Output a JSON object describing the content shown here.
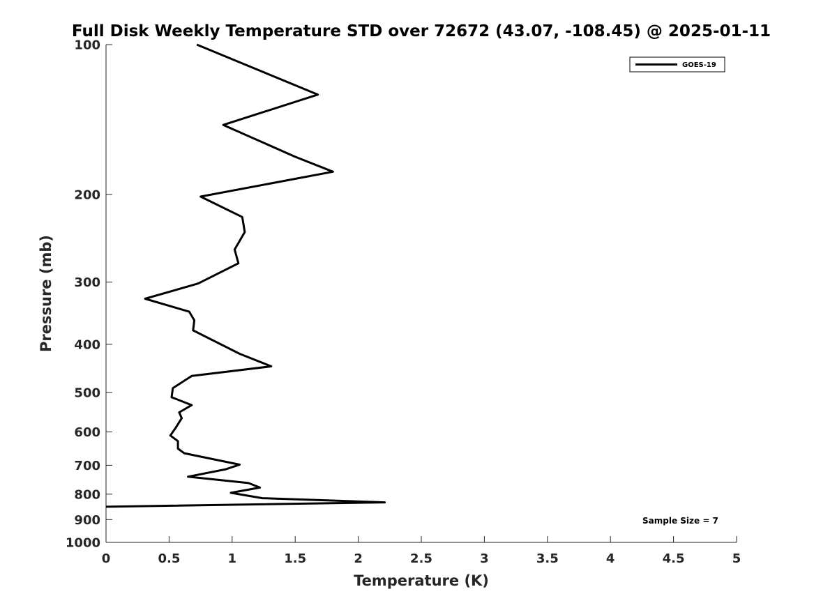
{
  "chart_data": {
    "type": "line",
    "title": "Full Disk Weekly Temperature STD over 72672 (43.07, -108.45) @ 2025-01-11",
    "xlabel": "Temperature (K)",
    "ylabel": "Pressure (mb)",
    "xlim": [
      0,
      5
    ],
    "ylim": [
      100,
      1000
    ],
    "y_scale": "log",
    "y_reversed": true,
    "grid": false,
    "legend_position": "top-right",
    "x_ticks": [
      "0",
      "0.5",
      "1",
      "1.5",
      "2",
      "2.5",
      "3",
      "3.5",
      "4",
      "4.5",
      "5"
    ],
    "y_ticks": [
      "100",
      "200",
      "300",
      "400",
      "500",
      "600",
      "700",
      "800",
      "900",
      "1000"
    ],
    "series": [
      {
        "name": "GOES-19",
        "color": "#000000",
        "points": [
          [
            0.72,
            100
          ],
          [
            1.68,
            126
          ],
          [
            0.93,
            145
          ],
          [
            1.5,
            168
          ],
          [
            1.8,
            180
          ],
          [
            0.75,
            202
          ],
          [
            1.08,
            222
          ],
          [
            1.1,
            238
          ],
          [
            1.02,
            258
          ],
          [
            1.05,
            275
          ],
          [
            0.73,
            302
          ],
          [
            0.31,
            324
          ],
          [
            0.66,
            344
          ],
          [
            0.7,
            358
          ],
          [
            0.69,
            375
          ],
          [
            1.06,
            418
          ],
          [
            1.31,
            443
          ],
          [
            0.68,
            463
          ],
          [
            0.53,
            490
          ],
          [
            0.52,
            511
          ],
          [
            0.68,
            530
          ],
          [
            0.58,
            548
          ],
          [
            0.6,
            563
          ],
          [
            0.55,
            590
          ],
          [
            0.51,
            610
          ],
          [
            0.57,
            626
          ],
          [
            0.57,
            648
          ],
          [
            0.62,
            662
          ],
          [
            1.06,
            698
          ],
          [
            0.95,
            713
          ],
          [
            0.65,
            738
          ],
          [
            1.13,
            760
          ],
          [
            1.22,
            776
          ],
          [
            0.99,
            795
          ],
          [
            1.24,
            815
          ],
          [
            2.21,
            831
          ],
          [
            0.0,
            848
          ]
        ]
      }
    ],
    "annotation": "Sample Size = 7"
  }
}
